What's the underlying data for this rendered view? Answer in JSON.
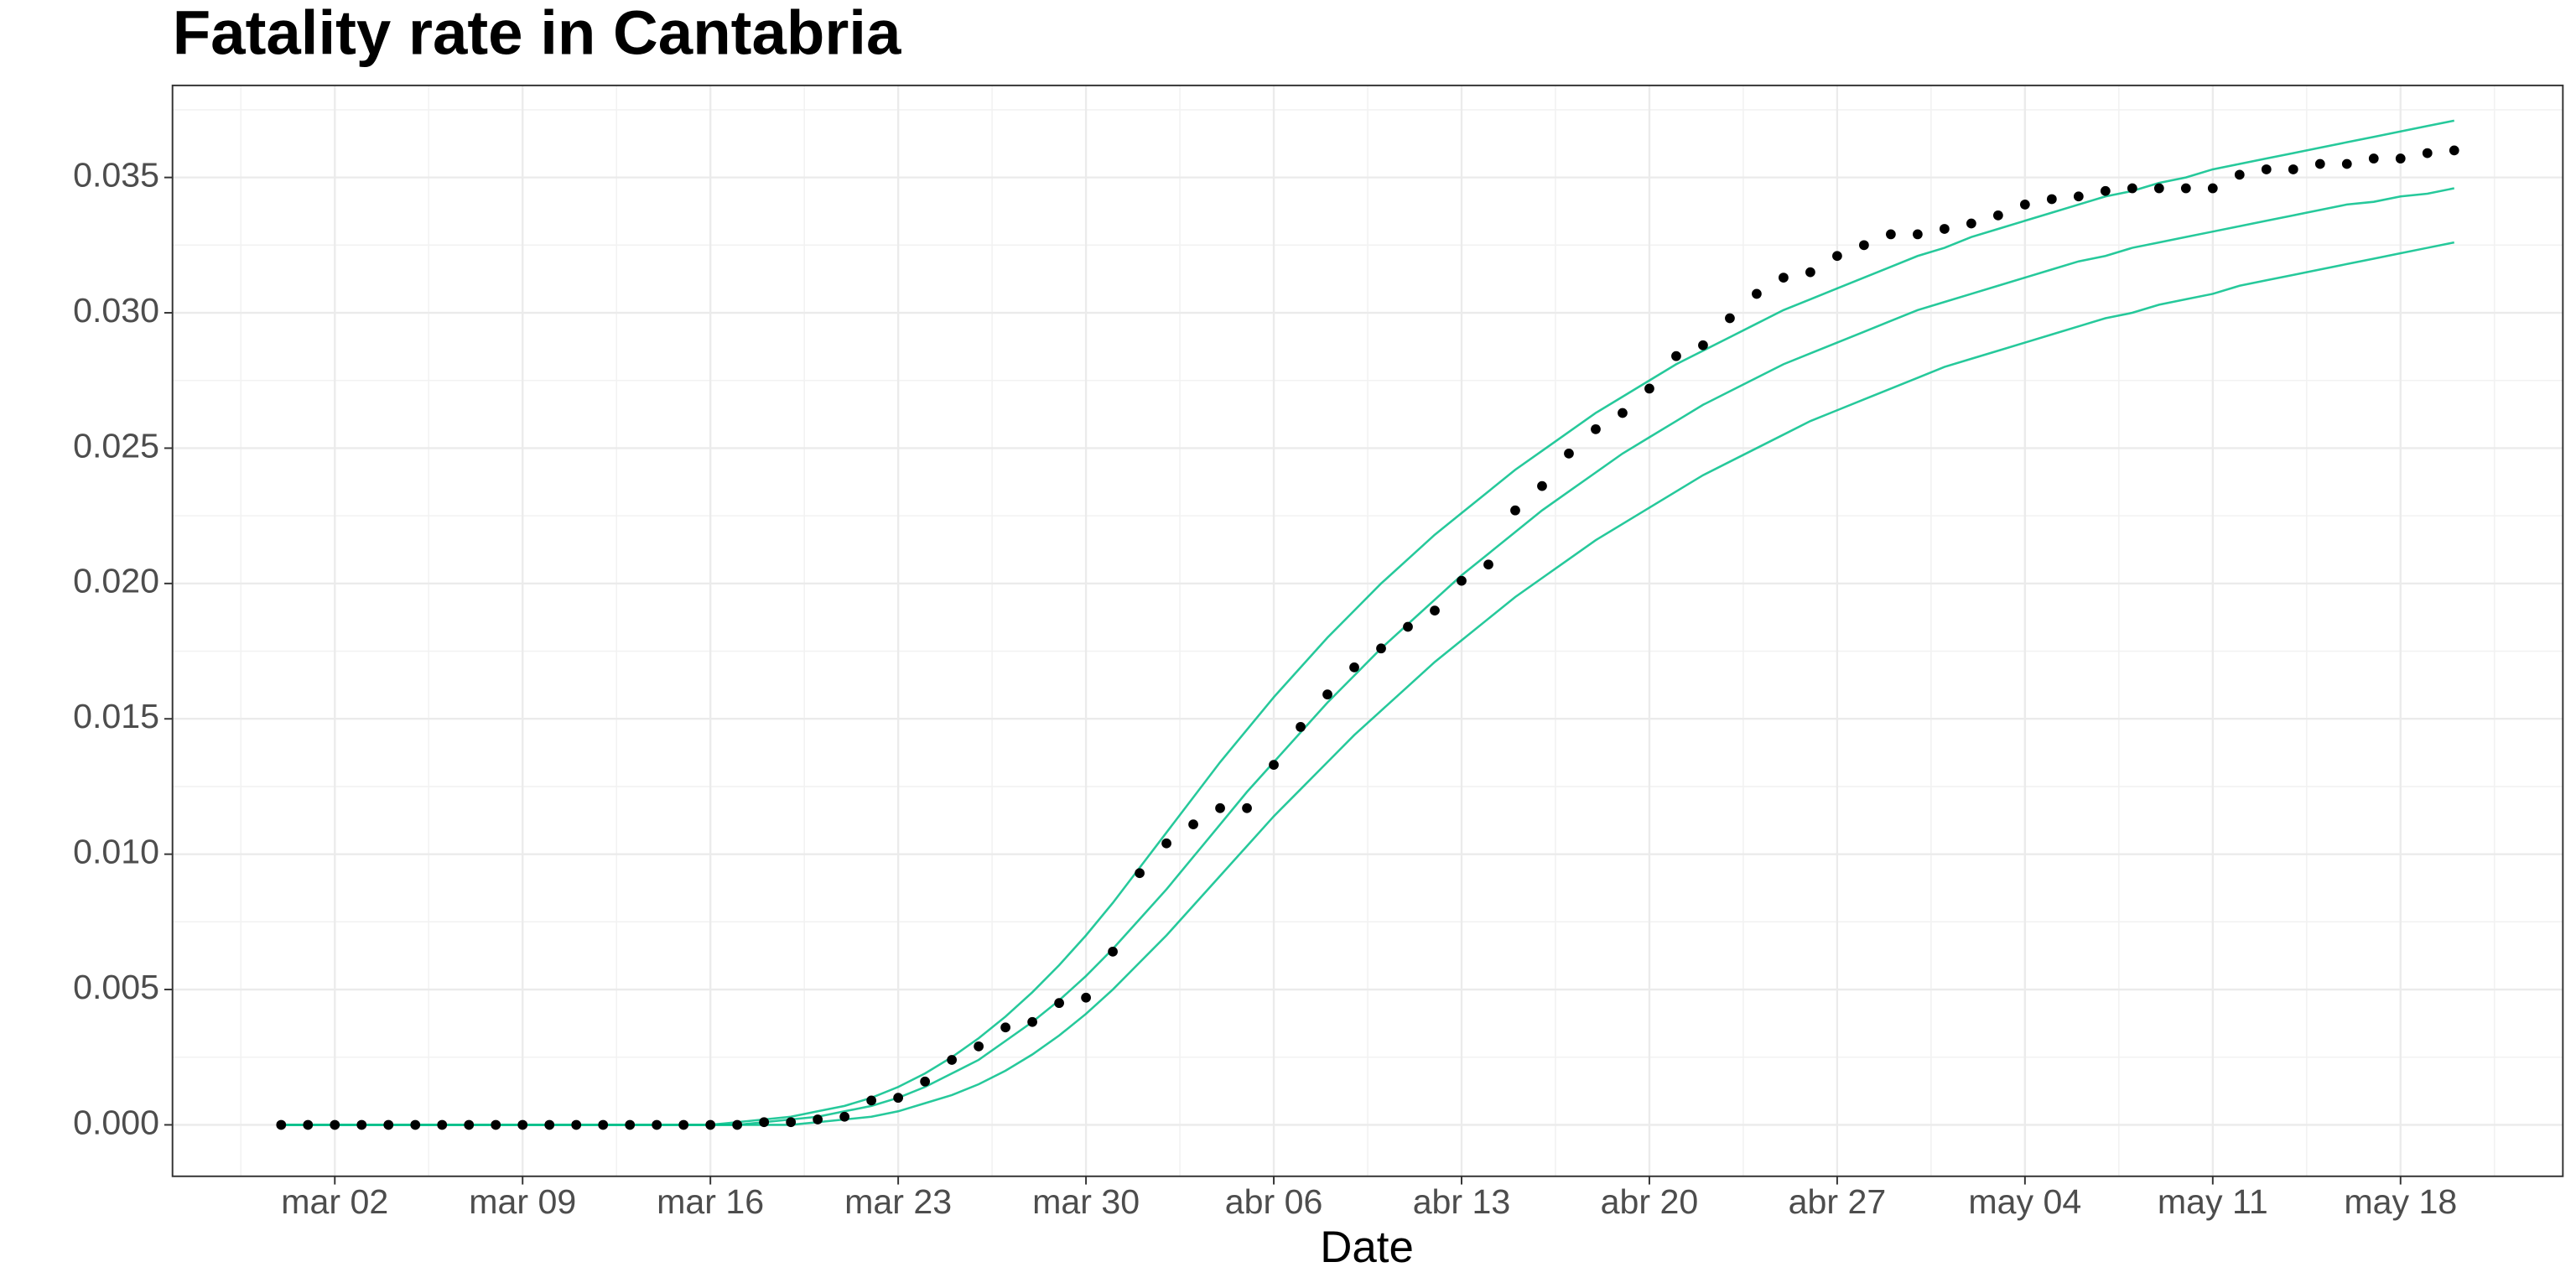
{
  "chart_data": {
    "type": "line",
    "title": "Fatality rate in  Cantabria",
    "xlabel": "Date",
    "grid": true,
    "x": [
      "02-29",
      "03-01",
      "03-02",
      "03-03",
      "03-04",
      "03-05",
      "03-06",
      "03-07",
      "03-08",
      "03-09",
      "03-10",
      "03-11",
      "03-12",
      "03-13",
      "03-14",
      "03-15",
      "03-16",
      "03-17",
      "03-18",
      "03-19",
      "03-20",
      "03-21",
      "03-22",
      "03-23",
      "03-24",
      "03-25",
      "03-26",
      "03-27",
      "03-28",
      "03-29",
      "03-30",
      "03-31",
      "04-01",
      "04-02",
      "04-03",
      "04-04",
      "04-05",
      "04-06",
      "04-07",
      "04-08",
      "04-09",
      "04-10",
      "04-11",
      "04-12",
      "04-13",
      "04-14",
      "04-15",
      "04-16",
      "04-17",
      "04-18",
      "04-19",
      "04-20",
      "04-21",
      "04-22",
      "04-23",
      "04-24",
      "04-25",
      "04-26",
      "04-27",
      "04-28",
      "04-29",
      "04-30",
      "05-01",
      "05-02",
      "05-03",
      "05-04",
      "05-05",
      "05-06",
      "05-07",
      "05-08",
      "05-09",
      "05-10",
      "05-11",
      "05-12",
      "05-13",
      "05-14",
      "05-15",
      "05-16",
      "05-17",
      "05-18",
      "05-19",
      "05-20"
    ],
    "xticks": [
      {
        "value": "03-02",
        "label": "mar 02"
      },
      {
        "value": "03-09",
        "label": "mar 09"
      },
      {
        "value": "03-16",
        "label": "mar 16"
      },
      {
        "value": "03-23",
        "label": "mar 23"
      },
      {
        "value": "03-30",
        "label": "mar 30"
      },
      {
        "value": "04-06",
        "label": "abr 06"
      },
      {
        "value": "04-13",
        "label": "abr 13"
      },
      {
        "value": "04-20",
        "label": "abr 20"
      },
      {
        "value": "04-27",
        "label": "abr 27"
      },
      {
        "value": "05-04",
        "label": "may 04"
      },
      {
        "value": "05-11",
        "label": "may 11"
      },
      {
        "value": "05-18",
        "label": "may 18"
      }
    ],
    "ylim": [
      -0.0019,
      0.0384
    ],
    "yticks": [
      {
        "value": 0,
        "label": "0.000"
      },
      {
        "value": 0.005,
        "label": "0.005"
      },
      {
        "value": 0.01,
        "label": "0.010"
      },
      {
        "value": 0.015,
        "label": "0.015"
      },
      {
        "value": 0.02,
        "label": "0.020"
      },
      {
        "value": 0.025,
        "label": "0.025"
      },
      {
        "value": 0.03,
        "label": "0.030"
      },
      {
        "value": 0.035,
        "label": "0.035"
      }
    ],
    "series": [
      {
        "color": "#00bf89",
        "values": [
          0,
          0,
          0,
          0,
          0,
          0,
          0,
          0,
          0,
          0,
          0,
          0,
          0,
          0,
          0,
          0,
          0,
          0.0001,
          0.0002,
          0.0003,
          0.0005,
          0.0007,
          0.001,
          0.0014,
          0.0019,
          0.0025,
          0.0032,
          0.004,
          0.0049,
          0.0059,
          0.007,
          0.0082,
          0.0095,
          0.0108,
          0.0121,
          0.0134,
          0.0146,
          0.0158,
          0.0169,
          0.018,
          0.019,
          0.02,
          0.0209,
          0.0218,
          0.0226,
          0.0234,
          0.0242,
          0.0249,
          0.0256,
          0.0263,
          0.0269,
          0.0275,
          0.0281,
          0.0286,
          0.0291,
          0.0296,
          0.0301,
          0.0305,
          0.0309,
          0.0313,
          0.0317,
          0.0321,
          0.0324,
          0.0328,
          0.0331,
          0.0334,
          0.0337,
          0.034,
          0.0343,
          0.0345,
          0.0348,
          0.035,
          0.0353,
          0.0355,
          0.0357,
          0.0359,
          0.0361,
          0.0363,
          0.0365,
          0.0367,
          0.0369,
          0.0371
        ]
      },
      {
        "color": "#00bf89",
        "values": [
          0,
          0,
          0,
          0,
          0,
          0,
          0,
          0,
          0,
          0,
          0,
          0,
          0,
          0,
          0,
          0,
          0,
          0,
          0.0001,
          0.0002,
          0.0003,
          0.0005,
          0.0007,
          0.001,
          0.0014,
          0.0019,
          0.0024,
          0.0031,
          0.0038,
          0.0046,
          0.0055,
          0.0065,
          0.0076,
          0.0087,
          0.0099,
          0.0111,
          0.0123,
          0.0134,
          0.0145,
          0.0156,
          0.0166,
          0.0176,
          0.0185,
          0.0194,
          0.0203,
          0.0211,
          0.0219,
          0.0227,
          0.0234,
          0.0241,
          0.0248,
          0.0254,
          0.026,
          0.0266,
          0.0271,
          0.0276,
          0.0281,
          0.0285,
          0.0289,
          0.0293,
          0.0297,
          0.0301,
          0.0304,
          0.0307,
          0.031,
          0.0313,
          0.0316,
          0.0319,
          0.0321,
          0.0324,
          0.0326,
          0.0328,
          0.033,
          0.0332,
          0.0334,
          0.0336,
          0.0338,
          0.034,
          0.0341,
          0.0343,
          0.0344,
          0.0346
        ]
      },
      {
        "color": "#00bf89",
        "values": [
          0,
          0,
          0,
          0,
          0,
          0,
          0,
          0,
          0,
          0,
          0,
          0,
          0,
          0,
          0,
          0,
          0,
          0,
          0,
          0,
          0.0001,
          0.0002,
          0.0003,
          0.0005,
          0.0008,
          0.0011,
          0.0015,
          0.002,
          0.0026,
          0.0033,
          0.0041,
          0.005,
          0.006,
          0.007,
          0.0081,
          0.0092,
          0.0103,
          0.0114,
          0.0124,
          0.0134,
          0.0144,
          0.0153,
          0.0162,
          0.0171,
          0.0179,
          0.0187,
          0.0195,
          0.0202,
          0.0209,
          0.0216,
          0.0222,
          0.0228,
          0.0234,
          0.024,
          0.0245,
          0.025,
          0.0255,
          0.026,
          0.0264,
          0.0268,
          0.0272,
          0.0276,
          0.028,
          0.0283,
          0.0286,
          0.0289,
          0.0292,
          0.0295,
          0.0298,
          0.03,
          0.0303,
          0.0305,
          0.0307,
          0.031,
          0.0312,
          0.0314,
          0.0316,
          0.0318,
          0.032,
          0.0322,
          0.0324,
          0.0326
        ]
      },
      {
        "color": "#000000",
        "marker": "point",
        "values": [
          0,
          0,
          0,
          0,
          0,
          0,
          0,
          0,
          0,
          0,
          0,
          0,
          0,
          0,
          0,
          0,
          0,
          0,
          0.0001,
          0.0001,
          0.0002,
          0.0003,
          0.0009,
          0.001,
          0.0016,
          0.0024,
          0.0029,
          0.0036,
          0.0038,
          0.0045,
          0.0047,
          0.0064,
          0.0093,
          0.0104,
          0.0111,
          0.0117,
          0.0117,
          0.0133,
          0.0147,
          0.0159,
          0.0169,
          0.0176,
          0.0184,
          0.019,
          0.0201,
          0.0207,
          0.0227,
          0.0236,
          0.0248,
          0.0257,
          0.0263,
          0.0272,
          0.0284,
          0.0288,
          0.0298,
          0.0307,
          0.0313,
          0.0315,
          0.0321,
          0.0325,
          0.0329,
          0.0329,
          0.0331,
          0.0333,
          0.0336,
          0.034,
          0.0342,
          0.0343,
          0.0345,
          0.0346,
          0.0346,
          0.0346,
          0.0346,
          0.0351,
          0.0353,
          0.0353,
          0.0355,
          0.0355,
          0.0357,
          0.0357,
          0.0359,
          0.036
        ]
      }
    ]
  }
}
